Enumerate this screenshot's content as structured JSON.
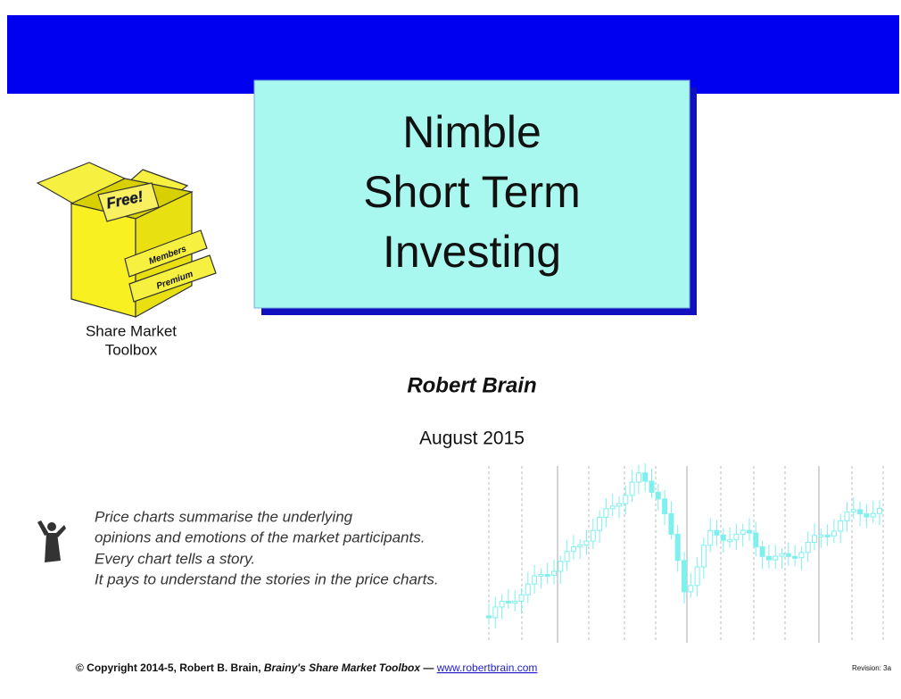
{
  "title": {
    "lines": [
      "Nimble",
      "Short Term",
      "Investing"
    ]
  },
  "logo": {
    "box_labels": [
      "Free!",
      "Members",
      "Premium"
    ],
    "caption": [
      "Share Market",
      "Toolbox"
    ]
  },
  "author": "Robert Brain",
  "date": "August 2015",
  "quote": {
    "lines": [
      "Price charts summarise the underlying",
      "opinions and emotions of the market participants.",
      "Every chart tells a story.",
      "It pays to understand the stories in the price charts."
    ]
  },
  "footer": {
    "copyright": "© Copyright 2014-5, Robert B. Brain, ",
    "brand": "Brainy's Share Market Toolbox",
    "dash": " — ",
    "link": "www.robertbrain.com",
    "revision": "Revision: 3a"
  }
}
